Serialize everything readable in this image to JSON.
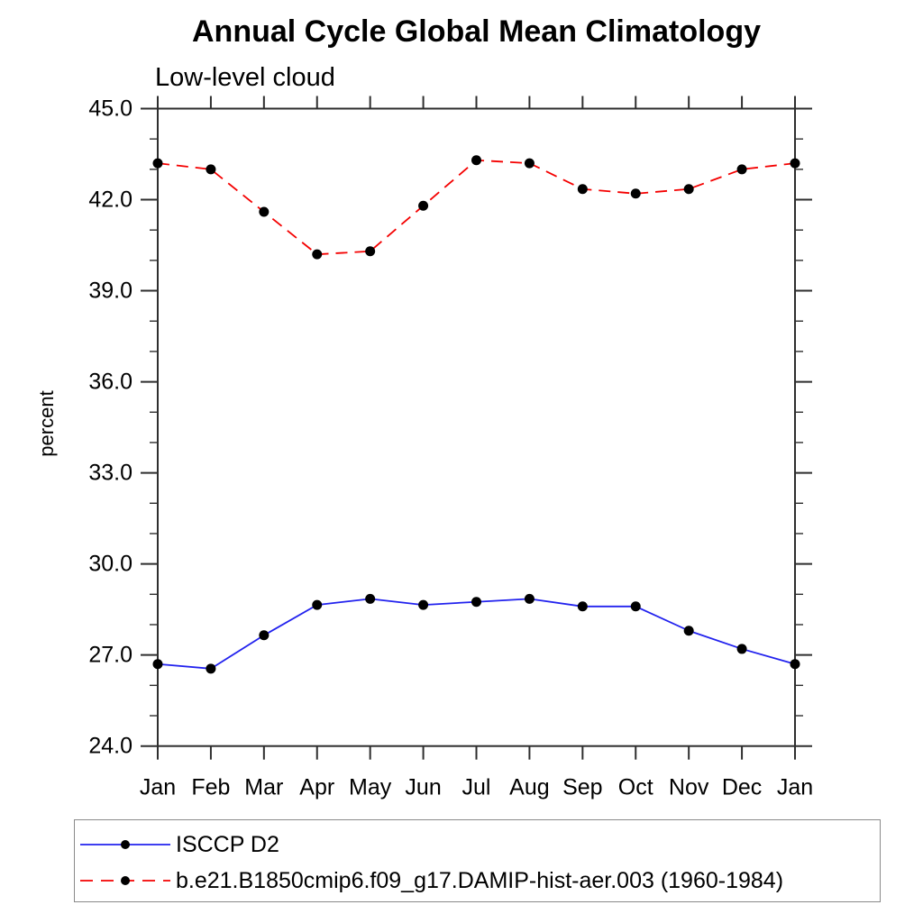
{
  "page": {
    "background": "#ffffff"
  },
  "chart_data": {
    "type": "line",
    "title": "Annual Cycle Global Mean Climatology",
    "subtitle": "Low-level cloud",
    "ylabel": "percent",
    "xlabel": "",
    "x_labels": [
      "Jan",
      "Feb",
      "Mar",
      "Apr",
      "May",
      "Jun",
      "Jul",
      "Aug",
      "Sep",
      "Oct",
      "Nov",
      "Dec",
      "Jan"
    ],
    "ylim": [
      24.0,
      45.0
    ],
    "ytick_major_step": 3.0,
    "ytick_minor_step": 1.0,
    "ytick_labels": [
      "24.0",
      "27.0",
      "30.0",
      "33.0",
      "36.0",
      "39.0",
      "42.0",
      "45.0"
    ],
    "grid": false,
    "legend_position": "bottom-left-box",
    "marker": {
      "shape": "circle",
      "color": "#000000",
      "radius": 5.5
    },
    "axis_color": "#2e2e2e",
    "series": [
      {
        "name": "ISCCP D2",
        "color": "#2222ee",
        "line_style": "solid",
        "values": [
          26.7,
          26.55,
          27.65,
          28.65,
          28.85,
          28.65,
          28.75,
          28.85,
          28.6,
          28.6,
          27.8,
          27.2,
          26.7
        ]
      },
      {
        "name": "b.e21.B1850cmip6.f09_g17.DAMIP-hist-aer.003 (1960-1984)",
        "color": "#f40000",
        "line_style": "dashed",
        "values": [
          43.2,
          43.0,
          41.6,
          40.2,
          40.3,
          41.8,
          43.3,
          43.2,
          42.35,
          42.2,
          42.35,
          43.0,
          43.2
        ]
      }
    ]
  }
}
